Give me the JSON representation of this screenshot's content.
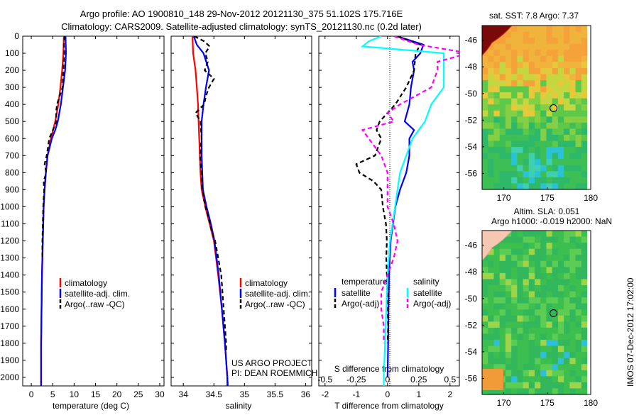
{
  "header": {
    "line1": "Argo profile: AO 1900810_148 29-Nov-2012 20121130_375 51.102S 175.716E",
    "line2": "Climatology: CARS2009. Satellite-adjusted climatology: synTS_20121130.nc (0.2d later)"
  },
  "depth_ticks": [
    "0",
    "100",
    "200",
    "300",
    "400",
    "500",
    "600",
    "700",
    "800",
    "900",
    "1000",
    "1100",
    "1200",
    "1300",
    "1400",
    "1500",
    "1600",
    "1700",
    "1800",
    "1900",
    "2000"
  ],
  "chart_data": [
    {
      "type": "line",
      "id": "temperature",
      "xlabel": "temperature (deg C)",
      "xlim": [
        -2,
        31
      ],
      "ylim": [
        2050,
        0
      ],
      "xticks": [
        "0",
        "5",
        "10",
        "15",
        "20",
        "25",
        "30"
      ],
      "legend": [
        "climatology",
        "satellite-adj. clim.",
        "Argo(..raw -QC)"
      ],
      "series": [
        {
          "name": "climatology",
          "color": "#ff0000",
          "dash": "",
          "depth": [
            0,
            100,
            200,
            300,
            400,
            500,
            600,
            700,
            800,
            900,
            1000,
            1200,
            1400,
            1600,
            1800,
            2000,
            2050
          ],
          "values": [
            7.6,
            7.5,
            7.2,
            6.8,
            6.3,
            5.6,
            4.6,
            3.8,
            3.4,
            3.1,
            2.9,
            2.7,
            2.5,
            2.4,
            2.3,
            2.3,
            2.3
          ]
        },
        {
          "name": "satellite-adj. clim.",
          "color": "#0000ff",
          "dash": "",
          "depth": [
            0,
            100,
            200,
            300,
            400,
            500,
            550,
            600,
            700,
            800,
            900,
            1000,
            1200,
            1400,
            1600,
            1800,
            2000,
            2050
          ],
          "values": [
            8.0,
            8.1,
            7.9,
            7.4,
            6.9,
            6.2,
            5.6,
            4.8,
            3.8,
            3.4,
            3.1,
            2.9,
            2.7,
            2.5,
            2.4,
            2.3,
            2.3,
            2.3
          ]
        },
        {
          "name": "Argo(..raw -QC)",
          "color": "#000000",
          "dash": "6,4",
          "depth": [
            0,
            50,
            100,
            200,
            300,
            400,
            450,
            500,
            600,
            700,
            750,
            800,
            850,
            900,
            1000,
            1100,
            1200,
            1300
          ],
          "values": [
            7.8,
            7.6,
            7.7,
            7.5,
            7.3,
            6.0,
            5.8,
            5.9,
            4.2,
            3.6,
            3.1,
            3.5,
            2.9,
            3.0,
            2.8,
            2.7,
            2.6,
            2.6
          ]
        }
      ]
    },
    {
      "type": "line",
      "id": "salinity",
      "xlabel": "salinity",
      "xlim": [
        33.8,
        36.1
      ],
      "ylim": [
        2050,
        0
      ],
      "xticks": [
        "34",
        "34.5",
        "35",
        "35.5",
        "36"
      ],
      "legend": [
        "climatology",
        "satellite-adj. clim.",
        "Argo(..raw -QC)"
      ],
      "annotation": [
        "US ARGO PROJECT",
        "PI: DEAN ROEMMICH"
      ],
      "series": [
        {
          "name": "climatology",
          "color": "#ff0000",
          "dash": "",
          "depth": [
            0,
            100,
            200,
            300,
            400,
            500,
            600,
            700,
            800,
            900,
            1000,
            1100,
            1200,
            1400,
            1600,
            1800,
            2000,
            2050
          ],
          "values": [
            34.15,
            34.16,
            34.2,
            34.22,
            34.24,
            34.25,
            34.26,
            34.27,
            34.28,
            34.3,
            34.36,
            34.43,
            34.5,
            34.57,
            34.63,
            34.68,
            34.72,
            34.73
          ]
        },
        {
          "name": "satellite-adj. clim.",
          "color": "#0000ff",
          "dash": "",
          "depth": [
            0,
            50,
            100,
            200,
            300,
            400,
            500,
            600,
            700,
            800,
            900,
            1000,
            1100,
            1200,
            1400,
            1600,
            1800,
            2000,
            2050
          ],
          "values": [
            34.17,
            34.22,
            34.33,
            34.42,
            34.37,
            34.33,
            34.3,
            34.3,
            34.3,
            34.31,
            34.32,
            34.38,
            34.45,
            34.51,
            34.58,
            34.63,
            34.68,
            34.72,
            34.72
          ]
        },
        {
          "name": "Argo(..raw -QC)",
          "color": "#000000",
          "dash": "6,4",
          "depth": [
            0,
            30,
            60,
            100,
            150,
            200,
            250,
            300,
            350,
            400,
            450,
            500,
            600,
            700,
            800,
            900,
            1000,
            1100,
            1150,
            1200,
            1300,
            1400,
            1500,
            1600,
            1700,
            1800,
            1850
          ],
          "values": [
            34.18,
            34.34,
            34.43,
            34.36,
            34.4,
            34.35,
            34.5,
            34.42,
            34.37,
            34.34,
            34.2,
            34.28,
            34.3,
            34.27,
            34.3,
            34.31,
            34.36,
            34.44,
            34.47,
            34.52,
            34.57,
            34.62,
            34.64,
            34.66,
            34.68,
            34.7,
            34.7
          ]
        }
      ]
    },
    {
      "type": "line",
      "id": "difference",
      "xlabel": "T difference from climatology",
      "xlabel2": "S difference from climatology",
      "xlim": [
        -2.2,
        2.3
      ],
      "ylim": [
        2050,
        0
      ],
      "xticks": [
        "-2",
        "-1",
        "0",
        "1",
        "2"
      ],
      "xticks2": [
        "-0.5",
        "-0.25",
        "0",
        "0.25",
        "0.5"
      ],
      "legend_temperature_title": "temperature",
      "legend_salinity_title": "salinity",
      "legend": [
        "satellite",
        "Argo(-adj)",
        "satellite",
        "Argo(-adj)"
      ],
      "series": [
        {
          "name": "satellite",
          "group": "temperature",
          "color": "#0000ff",
          "dash": "",
          "depth": [
            0,
            50,
            100,
            150,
            200,
            300,
            400,
            500,
            550,
            600,
            700,
            800,
            900,
            1000,
            1200,
            1400,
            1600,
            1800,
            2000
          ],
          "values": [
            0.3,
            1.15,
            1.05,
            0.8,
            0.85,
            0.75,
            0.7,
            0.55,
            0.85,
            0.7,
            0.7,
            0.6,
            0.4,
            0.25,
            0.1,
            0.05,
            0.03,
            0.02,
            0.0
          ]
        },
        {
          "name": "Argo(-adj)",
          "group": "temperature",
          "color": "#000000",
          "dash": "6,4",
          "depth": [
            0,
            50,
            100,
            200,
            300,
            400,
            500,
            550,
            600,
            700,
            750,
            800,
            850,
            900,
            1000,
            1100,
            1200,
            1300,
            1400,
            1500,
            1600,
            1700,
            1800
          ],
          "values": [
            0.3,
            1.05,
            0.9,
            0.85,
            0.6,
            0.25,
            -0.25,
            -0.35,
            -0.2,
            -0.4,
            -1.0,
            -0.9,
            -0.45,
            -0.2,
            -0.15,
            -0.05,
            -0.02,
            -0.04,
            -0.02,
            0.0,
            0.0,
            0.02,
            0.0
          ]
        },
        {
          "name": "satellite",
          "group": "salinity",
          "color": "#00ffff",
          "dash": "",
          "depth": [
            0,
            30,
            60,
            100,
            200,
            300,
            400,
            500,
            600,
            700,
            800,
            1000,
            1200,
            1400,
            1600,
            1800,
            2000,
            2050
          ],
          "values": [
            -0.05,
            -0.15,
            -0.2,
            0.45,
            0.45,
            0.45,
            0.35,
            0.3,
            0.2,
            0.15,
            0.1,
            0.06,
            0.02,
            0.0,
            -0.01,
            -0.02,
            -0.03,
            -0.03
          ]
        },
        {
          "name": "Argo(-adj)",
          "group": "salinity",
          "color": "#ff00ff",
          "dash": "6,4",
          "depth": [
            0,
            50,
            100,
            150,
            200,
            300,
            400,
            450,
            500,
            550,
            600,
            650,
            700,
            800,
            900,
            1000,
            1100,
            1200,
            1300,
            1400,
            1500,
            1600,
            1700,
            1800
          ],
          "values": [
            0.05,
            0.25,
            0.65,
            0.4,
            0.4,
            0.35,
            0.1,
            0.0,
            0.05,
            -0.2,
            -0.15,
            -0.1,
            -0.05,
            0.0,
            0.0,
            0.0,
            0.05,
            0.08,
            0.05,
            0.0,
            -0.05,
            -0.05,
            -0.03,
            -0.03
          ]
        }
      ]
    },
    {
      "type": "heatmap",
      "id": "sst_map",
      "title": "sat. SST: 7.8 Argo: 7.37",
      "xticks": [
        "170",
        "175",
        "180"
      ],
      "yticks": [
        "-46",
        "-48",
        "-50",
        "-52",
        "-54",
        "-56"
      ],
      "xlim": [
        167.5,
        180
      ],
      "ylim": [
        -57.2,
        -44.9
      ],
      "argo_position": {
        "lon": 175.716,
        "lat": -51.102
      }
    },
    {
      "type": "heatmap",
      "id": "sla_map",
      "title_line1": "Altim. SLA: 0.051",
      "title_line2": "Argo h1000: -0.019 h2000: NaN",
      "xticks": [
        "170",
        "175",
        "180"
      ],
      "yticks": [
        "-46",
        "-48",
        "-50",
        "-52",
        "-54",
        "-56"
      ],
      "xlim": [
        167.5,
        180
      ],
      "ylim": [
        -57.2,
        -44.9
      ],
      "argo_position": {
        "lon": 175.716,
        "lat": -51.102
      }
    }
  ],
  "side_stamp": "IMOS 07-Dec-2012 17:02:00"
}
